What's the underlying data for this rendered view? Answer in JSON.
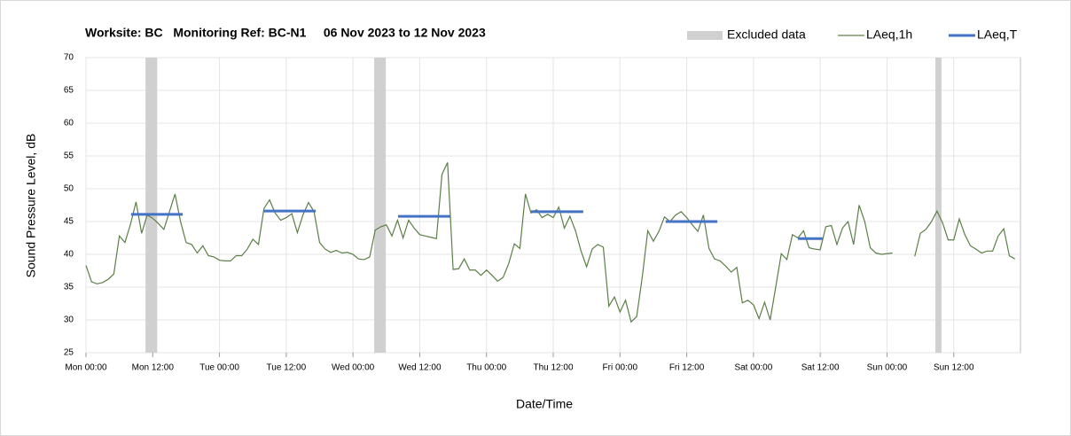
{
  "chart_data": {
    "type": "line",
    "title": "Worksite: BC   Monitoring Ref: BC-N1     06 Nov 2023 to 12 Nov 2023",
    "xlabel": "Date/Time",
    "ylabel": "Sound Pressure Level, dB",
    "xlim": [
      0,
      168
    ],
    "ylim": [
      25,
      70
    ],
    "yticks": [
      25,
      30,
      35,
      40,
      45,
      50,
      55,
      60,
      65,
      70
    ],
    "xticks": [
      {
        "value": 0,
        "label": "Mon 00:00"
      },
      {
        "value": 12,
        "label": "Mon 12:00"
      },
      {
        "value": 24,
        "label": "Tue 00:00"
      },
      {
        "value": 36,
        "label": "Tue 12:00"
      },
      {
        "value": 48,
        "label": "Wed 00:00"
      },
      {
        "value": 60,
        "label": "Wed 12:00"
      },
      {
        "value": 72,
        "label": "Thu 00:00"
      },
      {
        "value": 84,
        "label": "Thu 12:00"
      },
      {
        "value": 96,
        "label": "Fri 00:00"
      },
      {
        "value": 108,
        "label": "Fri 12:00"
      },
      {
        "value": 120,
        "label": "Sat 00:00"
      },
      {
        "value": 132,
        "label": "Sat 12:00"
      },
      {
        "value": 144,
        "label": "Sun 00:00"
      },
      {
        "value": 156,
        "label": "Sun 12:00"
      }
    ],
    "grid": true,
    "legend": "top-right",
    "x": [
      0,
      1,
      2,
      3,
      4,
      5,
      6,
      7,
      8,
      9,
      10,
      11,
      12,
      13,
      14,
      15,
      16,
      17,
      18,
      19,
      20,
      21,
      22,
      23,
      24,
      25,
      26,
      27,
      28,
      29,
      30,
      31,
      32,
      33,
      34,
      35,
      36,
      37,
      38,
      39,
      40,
      41,
      42,
      43,
      44,
      45,
      46,
      47,
      48,
      49,
      50,
      51,
      52,
      53,
      54,
      55,
      56,
      57,
      58,
      59,
      60,
      61,
      62,
      63,
      64,
      65,
      66,
      67,
      68,
      69,
      70,
      71,
      72,
      73,
      74,
      75,
      76,
      77,
      78,
      79,
      80,
      81,
      82,
      83,
      84,
      85,
      86,
      87,
      88,
      89,
      90,
      91,
      92,
      93,
      94,
      95,
      96,
      97,
      98,
      99,
      100,
      101,
      102,
      103,
      104,
      105,
      106,
      107,
      108,
      109,
      110,
      111,
      112,
      113,
      114,
      115,
      116,
      117,
      118,
      119,
      120,
      121,
      122,
      123,
      124,
      125,
      126,
      127,
      128,
      129,
      130,
      131,
      132,
      133,
      134,
      135,
      136,
      137,
      138,
      139,
      140,
      141,
      142,
      143,
      144,
      145,
      146,
      147,
      148,
      149,
      150,
      151,
      152,
      153,
      154,
      155,
      156,
      157,
      158,
      159,
      160,
      161,
      162,
      163,
      164,
      165,
      166,
      167
    ],
    "excluded": {
      "name": "Excluded data",
      "color": "#d0d0d0",
      "bands": [
        {
          "start": 10.7,
          "end": 12.8
        },
        {
          "start": 51.8,
          "end": 53.9
        },
        {
          "start": 152.7,
          "end": 153.8
        }
      ]
    },
    "series": [
      {
        "name": "LAeq,1h",
        "color": "#5b7f47",
        "values": [
          38.3,
          35.8,
          35.5,
          35.7,
          36.2,
          37,
          42.8,
          41.8,
          44.6,
          48,
          43.2,
          46,
          45.5,
          44.7,
          43.8,
          46.5,
          49.2,
          45,
          41.8,
          41.5,
          40.2,
          41.3,
          39.8,
          39.6,
          39.1,
          39,
          39,
          39.8,
          39.8,
          40.8,
          42.3,
          41.5,
          47,
          48.3,
          46.3,
          45.2,
          45.6,
          46.2,
          43.3,
          46,
          47.9,
          46.5,
          41.8,
          40.8,
          40.3,
          40.6,
          40.2,
          40.3,
          40,
          39.3,
          39.2,
          39.6,
          43.7,
          44.2,
          44.5,
          42.8,
          45.2,
          42.5,
          45.2,
          44,
          43,
          42.8,
          42.6,
          42.4,
          52.2,
          54,
          37.7,
          37.8,
          39.3,
          37.6,
          37.6,
          36.8,
          37.6,
          36.8,
          35.9,
          36.5,
          38.6,
          41.6,
          40.9,
          49.2,
          46.3,
          46.8,
          45.6,
          46.1,
          45.6,
          47.2,
          44,
          45.8,
          43.6,
          40.5,
          38.1,
          40.8,
          41.5,
          41.1,
          32.1,
          33.5,
          31.2,
          33,
          29.7,
          30.5,
          36.5,
          43.6,
          42,
          43.5,
          45.7,
          45,
          46,
          46.5,
          45.6,
          44.5,
          43.5,
          46,
          40.9,
          39.3,
          39,
          38.2,
          37.3,
          38,
          32.6,
          33,
          32.3,
          30.2,
          32.7,
          30,
          35,
          40.1,
          39.2,
          43,
          42.5,
          43.6,
          41,
          40.8,
          40.7,
          44.2,
          44.4,
          41.5,
          44,
          45,
          41.5,
          47.5,
          45,
          41,
          40.2,
          40,
          40.1,
          40.2,
          null,
          null,
          null,
          39.7,
          43.2,
          43.8,
          45,
          46.6,
          44.8,
          42.2,
          42.2,
          45.4,
          43,
          41.3,
          40.8,
          40.2,
          40.5,
          40.5,
          42.8,
          43.9,
          39.8,
          39.3
        ]
      }
    ],
    "periods": {
      "name": "LAeq,T",
      "color": "#4472c4",
      "segments": [
        {
          "start": 8.1,
          "end": 17.4,
          "value": 46.1
        },
        {
          "start": 31.9,
          "end": 41.3,
          "value": 46.6
        },
        {
          "start": 56.1,
          "end": 65.5,
          "value": 45.8
        },
        {
          "start": 80,
          "end": 89.4,
          "value": 46.5
        },
        {
          "start": 104.2,
          "end": 113.5,
          "value": 45
        },
        {
          "start": 128,
          "end": 132.4,
          "value": 42.4
        }
      ]
    }
  }
}
